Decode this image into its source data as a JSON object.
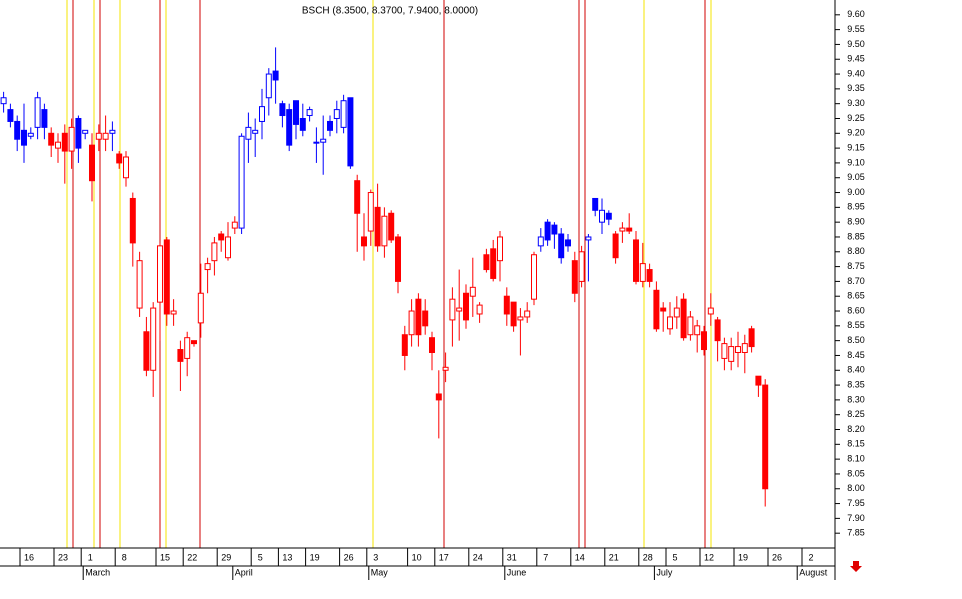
{
  "chart_data": {
    "type": "candlestick",
    "title": "BSCH (8.3500, 8.3700, 7.9400, 8.0000)",
    "categories": [
      null,
      null,
      null,
      "16",
      null,
      null,
      null,
      null,
      "23",
      null,
      null,
      null,
      "1",
      null,
      null,
      null,
      null,
      "8",
      null,
      null,
      null,
      null,
      null,
      "15",
      null,
      null,
      null,
      "22",
      null,
      null,
      null,
      null,
      "29",
      null,
      null,
      null,
      null,
      "5",
      null,
      null,
      null,
      "13",
      null,
      null,
      null,
      "19",
      null,
      null,
      null,
      null,
      "26",
      null,
      null,
      null,
      "3",
      null,
      null,
      null,
      null,
      null,
      "10",
      null,
      null,
      null,
      "17",
      null,
      null,
      null,
      null,
      "24",
      null,
      null,
      null,
      null,
      "31",
      null,
      null,
      null,
      null,
      "7",
      null,
      null,
      null,
      null,
      "14",
      null,
      null,
      null,
      null,
      "21",
      null,
      null,
      null,
      null,
      "28",
      null,
      null,
      null,
      "5",
      null,
      null,
      null,
      null,
      "12",
      null,
      null,
      null,
      null,
      "19",
      null,
      null,
      null,
      null,
      "26",
      null,
      null,
      null,
      null,
      "2",
      null
    ],
    "months": [
      null,
      null,
      null,
      null,
      null,
      null,
      null,
      null,
      null,
      null,
      null,
      null,
      "March",
      null,
      null,
      null,
      null,
      null,
      null,
      null,
      null,
      null,
      null,
      null,
      null,
      null,
      null,
      null,
      null,
      null,
      null,
      null,
      null,
      null,
      "April",
      null,
      null,
      null,
      null,
      null,
      null,
      null,
      null,
      null,
      null,
      null,
      null,
      null,
      null,
      null,
      null,
      null,
      null,
      null,
      "May",
      null,
      null,
      null,
      null,
      null,
      null,
      null,
      null,
      null,
      null,
      null,
      null,
      null,
      null,
      null,
      null,
      null,
      null,
      null,
      "June",
      null,
      null,
      null,
      null,
      null,
      null,
      null,
      null,
      null,
      null,
      null,
      null,
      null,
      null,
      null,
      null,
      null,
      null,
      null,
      null,
      null,
      "July",
      null,
      null,
      null,
      null,
      null,
      null,
      null,
      null,
      null,
      null,
      null,
      null,
      null,
      null,
      null,
      null,
      null,
      null,
      null,
      null,
      "August",
      null,
      null
    ],
    "open": [
      9.3,
      9.28,
      9.24,
      9.21,
      9.19,
      9.22,
      9.28,
      9.2,
      9.15,
      9.2,
      9.14,
      9.25,
      9.2,
      9.16,
      9.18,
      9.18,
      9.2,
      9.13,
      9.05,
      8.98,
      8.61,
      8.53,
      8.4,
      8.63,
      8.84,
      8.59,
      8.47,
      8.44,
      8.5,
      8.56,
      8.74,
      8.77,
      8.86,
      8.78,
      8.88,
      8.88,
      9.18,
      9.2,
      9.24,
      9.32,
      9.41,
      9.3,
      9.28,
      9.31,
      9.25,
      9.26,
      9.17,
      9.17,
      9.24,
      9.25,
      9.22,
      9.32,
      9.04,
      8.85,
      8.87,
      8.95,
      8.82,
      8.93,
      8.85,
      8.52,
      8.52,
      8.64,
      8.6,
      8.51,
      8.32,
      8.4,
      8.57,
      8.6,
      8.66,
      8.65,
      8.59,
      8.79,
      8.81,
      8.77,
      8.65,
      8.63,
      8.57,
      8.58,
      8.64,
      8.82,
      8.9,
      8.89,
      8.86,
      8.84,
      8.77,
      8.7,
      8.84,
      8.98,
      8.9,
      8.93,
      8.86,
      8.87,
      8.88,
      8.84,
      8.7,
      8.74,
      8.67,
      8.61,
      8.54,
      8.58,
      8.64,
      8.52,
      8.52,
      8.53,
      8.59,
      8.57,
      8.44,
      8.43,
      8.46,
      8.46,
      8.54,
      8.38,
      8.35,
      null,
      null,
      null,
      null,
      null,
      null,
      null
    ],
    "high": [
      9.34,
      9.3,
      9.26,
      9.3,
      9.22,
      9.34,
      9.3,
      9.22,
      9.2,
      9.23,
      9.25,
      9.26,
      9.2,
      9.2,
      9.23,
      9.26,
      9.24,
      9.14,
      9.14,
      9.0,
      8.8,
      8.58,
      8.63,
      8.83,
      8.85,
      8.64,
      8.5,
      8.53,
      8.5,
      8.76,
      8.78,
      8.85,
      8.87,
      8.9,
      8.92,
      9.2,
      9.27,
      9.25,
      9.35,
      9.42,
      9.49,
      9.31,
      9.3,
      9.31,
      9.3,
      9.29,
      9.22,
      9.26,
      9.26,
      9.31,
      9.33,
      9.32,
      9.06,
      8.93,
      9.01,
      9.03,
      8.95,
      8.94,
      8.86,
      8.55,
      8.64,
      8.66,
      8.64,
      8.53,
      8.4,
      8.46,
      8.68,
      8.74,
      8.69,
      8.78,
      8.63,
      8.81,
      8.84,
      8.87,
      8.68,
      8.63,
      8.61,
      8.63,
      8.8,
      8.88,
      8.91,
      8.9,
      8.88,
      8.86,
      8.8,
      8.82,
      8.86,
      8.98,
      8.98,
      8.94,
      8.87,
      8.9,
      8.93,
      8.87,
      8.83,
      8.76,
      8.7,
      8.63,
      8.63,
      8.65,
      8.66,
      8.6,
      8.57,
      8.55,
      8.66,
      8.58,
      8.51,
      8.51,
      8.53,
      8.52,
      8.55,
      8.38,
      8.37,
      null,
      null,
      null,
      null,
      null,
      null,
      null
    ],
    "low": [
      9.27,
      9.22,
      9.14,
      9.1,
      9.18,
      9.18,
      9.18,
      9.12,
      9.1,
      9.03,
      9.08,
      9.1,
      9.18,
      8.97,
      9.14,
      9.14,
      9.14,
      9.08,
      9.02,
      8.75,
      8.58,
      8.38,
      8.31,
      8.5,
      8.55,
      8.55,
      8.33,
      8.38,
      8.48,
      8.51,
      8.66,
      8.72,
      8.8,
      8.77,
      8.86,
      8.86,
      9.1,
      9.12,
      9.18,
      9.26,
      9.3,
      9.22,
      9.14,
      9.18,
      9.19,
      9.24,
      9.1,
      9.06,
      9.19,
      9.2,
      9.2,
      9.08,
      8.8,
      8.77,
      8.82,
      8.8,
      8.78,
      8.83,
      8.66,
      8.4,
      8.48,
      8.48,
      8.52,
      8.4,
      8.17,
      8.36,
      8.48,
      8.5,
      8.54,
      8.58,
      8.56,
      8.73,
      8.7,
      8.7,
      8.55,
      8.53,
      8.45,
      8.56,
      8.62,
      8.8,
      8.82,
      8.81,
      8.76,
      8.8,
      8.63,
      8.68,
      8.7,
      8.92,
      8.86,
      8.89,
      8.76,
      8.83,
      8.86,
      8.69,
      8.68,
      8.68,
      8.53,
      8.53,
      8.52,
      8.54,
      8.5,
      8.5,
      8.46,
      8.45,
      8.55,
      8.43,
      8.4,
      8.4,
      8.41,
      8.39,
      8.46,
      8.31,
      7.94,
      null,
      null,
      null,
      null,
      null,
      null,
      null
    ],
    "close": [
      9.32,
      9.24,
      9.18,
      9.16,
      9.2,
      9.32,
      9.22,
      9.16,
      9.17,
      9.14,
      9.22,
      9.15,
      9.21,
      9.04,
      9.2,
      9.2,
      9.21,
      9.1,
      9.12,
      8.83,
      8.77,
      8.4,
      8.61,
      8.82,
      8.59,
      8.6,
      8.43,
      8.51,
      8.49,
      8.66,
      8.76,
      8.83,
      8.84,
      8.85,
      8.9,
      9.19,
      9.22,
      9.21,
      9.29,
      9.4,
      9.38,
      9.26,
      9.16,
      9.23,
      9.21,
      9.28,
      9.17,
      9.18,
      9.21,
      9.28,
      9.31,
      9.09,
      8.93,
      8.82,
      9.0,
      8.82,
      8.92,
      8.84,
      8.7,
      8.45,
      8.6,
      8.52,
      8.55,
      8.46,
      8.3,
      8.41,
      8.64,
      8.61,
      8.57,
      8.68,
      8.62,
      8.74,
      8.71,
      8.85,
      8.59,
      8.55,
      8.58,
      8.6,
      8.79,
      8.85,
      8.84,
      8.86,
      8.78,
      8.82,
      8.66,
      8.8,
      8.85,
      8.94,
      8.94,
      8.91,
      8.78,
      8.88,
      8.87,
      8.7,
      8.76,
      8.7,
      8.54,
      8.6,
      8.58,
      8.61,
      8.51,
      8.58,
      8.55,
      8.47,
      8.61,
      8.5,
      8.49,
      8.48,
      8.48,
      8.49,
      8.48,
      8.35,
      8.0,
      null,
      null,
      null,
      null,
      null,
      null,
      null
    ],
    "colors": [
      "blue",
      "blue",
      "blue",
      "blue",
      "blue",
      "blue",
      "blue",
      "red",
      "red",
      "red",
      "red",
      "blue",
      "blue",
      "red",
      "red",
      "red",
      "blue",
      "red",
      "red",
      "red",
      "red",
      "red",
      "red",
      "red",
      "red",
      "red",
      "red",
      "red",
      "red",
      "red",
      "red",
      "red",
      "red",
      "red",
      "red",
      "blue",
      "blue",
      "blue",
      "blue",
      "blue",
      "blue",
      "blue",
      "blue",
      "blue",
      "blue",
      "blue",
      "blue",
      "blue",
      "blue",
      "blue",
      "blue",
      "blue",
      "red",
      "red",
      "red",
      "red",
      "red",
      "red",
      "red",
      "red",
      "red",
      "red",
      "red",
      "red",
      "red",
      "red",
      "red",
      "red",
      "red",
      "red",
      "red",
      "red",
      "red",
      "red",
      "red",
      "red",
      "red",
      "red",
      "red",
      "blue",
      "blue",
      "blue",
      "blue",
      "blue",
      "red",
      "red",
      "blue",
      "blue",
      "blue",
      "blue",
      "red",
      "red",
      "red",
      "red",
      "red",
      "red",
      "red",
      "red",
      "red",
      "red",
      "red",
      "red",
      "red",
      "red",
      "red",
      "red",
      "red",
      "red",
      "red",
      "red",
      "red",
      "red",
      "red",
      null,
      null,
      null,
      null,
      null,
      null,
      null
    ],
    "ylim": [
      7.8,
      9.65
    ],
    "yticks": [
      {
        "value": 9.6,
        "label": "9.60"
      },
      {
        "value": 9.55,
        "label": "9.55"
      },
      {
        "value": 9.5,
        "label": "9.50"
      },
      {
        "value": 9.45,
        "label": "9.45"
      },
      {
        "value": 9.4,
        "label": "9.40"
      },
      {
        "value": 9.35,
        "label": "9.35"
      },
      {
        "value": 9.3,
        "label": "9.30"
      },
      {
        "value": 9.25,
        "label": "9.25"
      },
      {
        "value": 9.2,
        "label": "9.20"
      },
      {
        "value": 9.15,
        "label": "9.15"
      },
      {
        "value": 9.1,
        "label": "9.10"
      },
      {
        "value": 9.05,
        "label": "9.05"
      },
      {
        "value": 9.0,
        "label": "9.00"
      },
      {
        "value": 8.95,
        "label": "8.95"
      },
      {
        "value": 8.9,
        "label": "8.90"
      },
      {
        "value": 8.85,
        "label": "8.85"
      },
      {
        "value": 8.8,
        "label": "8.80"
      },
      {
        "value": 8.75,
        "label": "8.75"
      },
      {
        "value": 8.7,
        "label": "8.70"
      },
      {
        "value": 8.65,
        "label": "8.65"
      },
      {
        "value": 8.6,
        "label": "8.60"
      },
      {
        "value": 8.55,
        "label": "8.55"
      },
      {
        "value": 8.5,
        "label": "8.50"
      },
      {
        "value": 8.45,
        "label": "8.45"
      },
      {
        "value": 8.4,
        "label": "8.40"
      },
      {
        "value": 8.35,
        "label": "8.35"
      },
      {
        "value": 8.3,
        "label": "8.30"
      },
      {
        "value": 8.25,
        "label": "8.25"
      },
      {
        "value": 8.2,
        "label": "8.20"
      },
      {
        "value": 8.15,
        "label": "8.15"
      },
      {
        "value": 8.1,
        "label": "8.10"
      },
      {
        "value": 8.05,
        "label": "8.05"
      },
      {
        "value": 8.0,
        "label": "8.00"
      },
      {
        "value": 7.95,
        "label": "7.95"
      },
      {
        "value": 7.9,
        "label": "7.90"
      },
      {
        "value": 7.85,
        "label": "7.85"
      }
    ]
  }
}
